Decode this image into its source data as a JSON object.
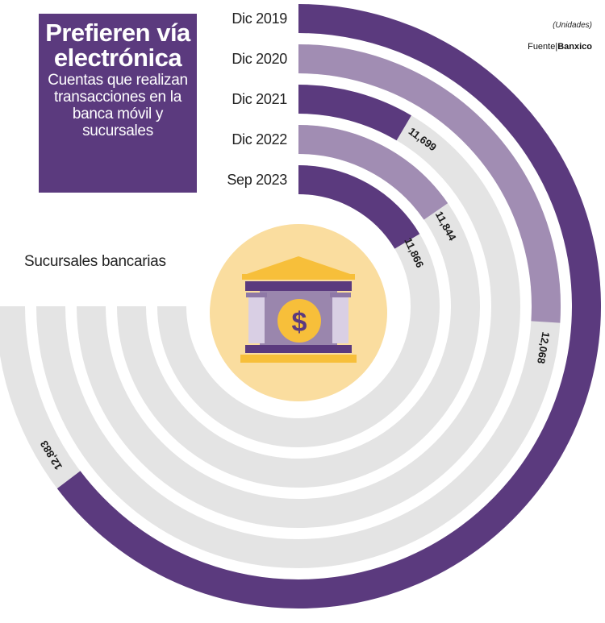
{
  "title": {
    "main": "Prefieren vía electrónica",
    "subtitle": "Cuentas que realizan transacciones en la banca móvil y sucursales"
  },
  "units": "(Unidades)",
  "source": {
    "prefix": "Fuente",
    "name": "Banxico"
  },
  "side_label": "Sucursales bancarias",
  "colors": {
    "dark_purple": "#5b3a7e",
    "light_purple": "#a18db3",
    "gray": "#e4e4e4",
    "icon_bg": "#fadd9f",
    "icon_gold": "#f7bf3a"
  },
  "icon": "bank-icon",
  "chart_data": {
    "type": "radial-bar",
    "series_name": "Sucursales bancarias",
    "categories": [
      "Dic 2019",
      "Dic 2020",
      "Dic 2021",
      "Dic 2022",
      "Sep 2023"
    ],
    "values": [
      12883,
      12068,
      11699,
      11844,
      11866
    ],
    "value_labels": [
      "12,883",
      "12,068",
      "11,699",
      "11,844",
      "11,866"
    ],
    "ring_colors": [
      "#5b3a7e",
      "#a18db3",
      "#5b3a7e",
      "#a18db3",
      "#5b3a7e"
    ]
  }
}
